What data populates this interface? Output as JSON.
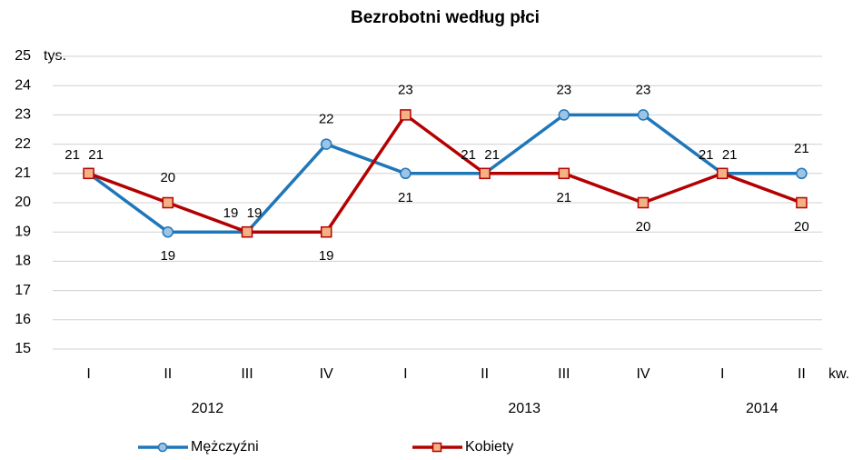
{
  "chart_data": {
    "type": "line",
    "title": "Bezrobotni według płci",
    "y_unit": "tys.",
    "x_unit": "kw.",
    "categories": [
      "I",
      "II",
      "III",
      "IV",
      "I",
      "II",
      "III",
      "IV",
      "I",
      "II"
    ],
    "groups": [
      {
        "label": "2012",
        "count": 4
      },
      {
        "label": "2013",
        "count": 4
      },
      {
        "label": "2014",
        "count": 2
      }
    ],
    "series": [
      {
        "name": "Mężczyźni",
        "color": "#1f77b9",
        "marker": "circle",
        "marker_fill": "#9dc3e6",
        "label_color": "#2f5597",
        "values": [
          21,
          19,
          19,
          22,
          21,
          21,
          23,
          23,
          21,
          21
        ]
      },
      {
        "name": "Kobiety",
        "color": "#b40000",
        "marker": "square",
        "marker_fill": "#f4b183",
        "label_color": "#b40000",
        "values": [
          21,
          20,
          19,
          19,
          23,
          21,
          21,
          20,
          21,
          20
        ]
      }
    ],
    "ylim": [
      15,
      25
    ],
    "yticks": [
      15,
      16,
      17,
      18,
      19,
      20,
      21,
      22,
      23,
      24,
      25
    ],
    "grid": true
  }
}
